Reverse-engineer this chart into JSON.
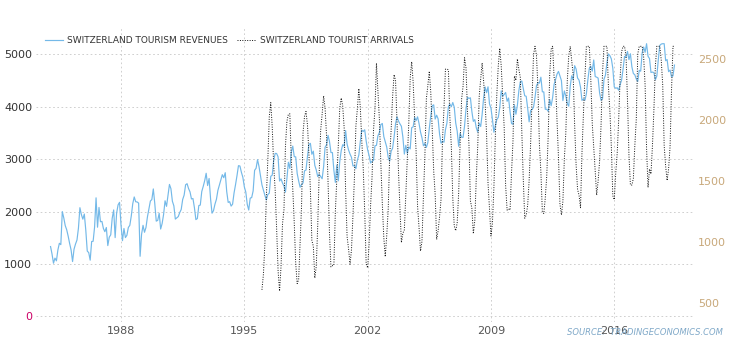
{
  "legend_revenues": "SWITZERLAND TOURISM REVENUES",
  "legend_arrivals": "SWITZERLAND TOURIST ARRIVALS",
  "source_text": "SOURCE:  TRADINGECONOMICS.COM",
  "revenue_color": "#74b9e8",
  "arrivals_color": "#111111",
  "left_yticks": [
    0,
    1000,
    2000,
    3000,
    4000,
    5000
  ],
  "right_yticks": [
    500,
    1000,
    1500,
    2000,
    2500
  ],
  "xtick_years": [
    1988,
    1995,
    2002,
    2009,
    2016
  ],
  "ylim_left": [
    -100,
    5500
  ],
  "ylim_right": [
    350,
    2750
  ],
  "xlim": [
    1983.2,
    2020.5
  ],
  "background_color": "#ffffff",
  "grid_color": "#c8c8c8",
  "left_tick_color": "#333333",
  "right_tick_color": "#c8a87a",
  "zero_tick_color": "#cc0066",
  "xtick_color": "#555555",
  "source_color": "#7fa8c8"
}
